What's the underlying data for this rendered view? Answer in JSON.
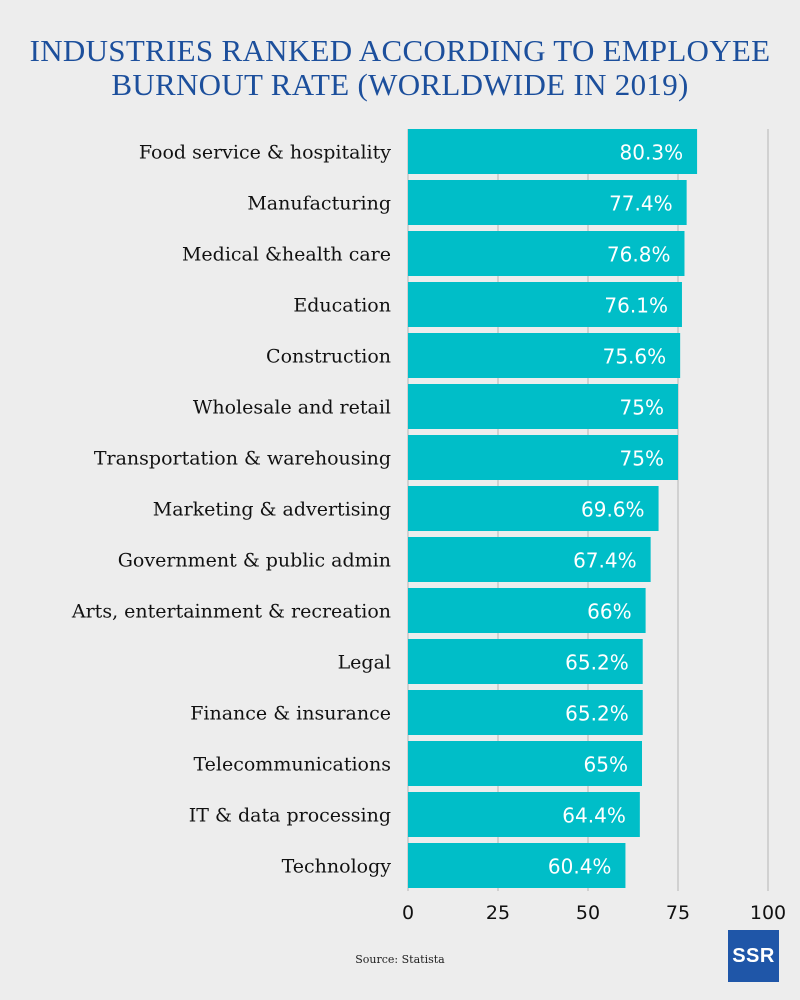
{
  "title_lines": [
    "INDUSTRIES RANKED ACCORDING TO EMPLOYEE",
    "BURNOUT RATE (WORLDWIDE IN 2019)"
  ],
  "source": "Source: Statista",
  "logo_text": "SSR",
  "colors": {
    "bar": "#00bec8",
    "title": "#1c4f9c",
    "background": "#ededed",
    "grid": "#c8c8c8",
    "logo": "#1f56a8"
  },
  "chart_data": {
    "type": "bar",
    "orientation": "horizontal",
    "title": "INDUSTRIES RANKED ACCORDING TO EMPLOYEE BURNOUT RATE (WORLDWIDE IN 2019)",
    "categories": [
      "Food service & hospitality",
      "Manufacturing",
      "Medical &health care",
      "Education",
      "Construction",
      "Wholesale and retail",
      "Transportation & warehousing",
      "Marketing & advertising",
      "Government & public admin",
      "Arts, entertainment & recreation",
      "Legal",
      "Finance & insurance",
      "Telecommunications",
      "IT & data processing",
      "Technology"
    ],
    "values": [
      80.3,
      77.4,
      76.8,
      76.1,
      75.6,
      75,
      75,
      69.6,
      67.4,
      66,
      65.2,
      65.2,
      65,
      64.4,
      60.4
    ],
    "value_labels": [
      "80.3%",
      "77.4%",
      "76.8%",
      "76.1%",
      "75.6%",
      "75%",
      "75%",
      "69.6%",
      "67.4%",
      "66%",
      "65.2%",
      "65.2%",
      "65%",
      "64.4%",
      "60.4%"
    ],
    "xlim": [
      0,
      100
    ],
    "xticks": [
      0,
      25,
      50,
      75,
      100
    ],
    "grid": true
  }
}
